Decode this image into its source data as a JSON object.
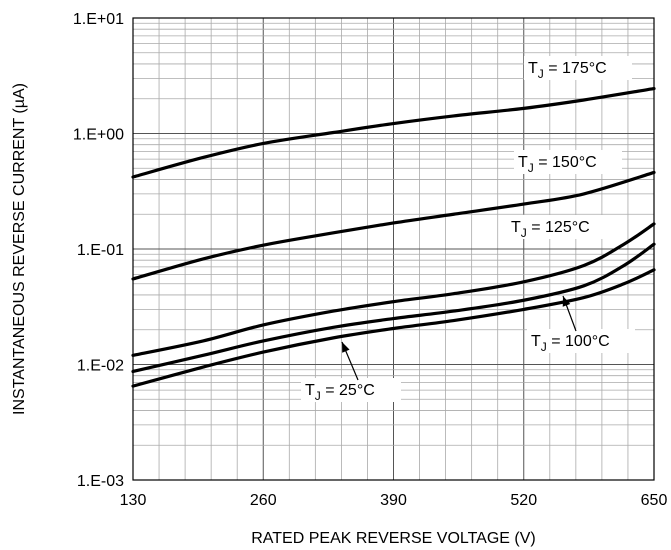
{
  "chart_data": {
    "type": "line",
    "title": "",
    "xlabel": "RATED PEAK REVERSE VOLTAGE (V)",
    "ylabel": "INSTANTANEOUS REVERSE CURRENT (µA)",
    "xlim": [
      130,
      650
    ],
    "ylim": [
      0.001,
      10
    ],
    "yscale": "log",
    "grid": true,
    "x_ticks": [
      "130",
      "260",
      "390",
      "520",
      "650"
    ],
    "y_ticks": [
      "1.E-03",
      "1.E-02",
      "1.E-01",
      "1.E+00",
      "1.E+01"
    ],
    "series": [
      {
        "name": "T_J = 175°C",
        "label_main": "T",
        "label_sub": "J",
        "label_rest": " = 175°C",
        "x": [
          130,
          200,
          260,
          330,
          390,
          450,
          520,
          580,
          650
        ],
        "y": [
          0.42,
          0.62,
          0.82,
          1.02,
          1.22,
          1.42,
          1.65,
          1.95,
          2.45
        ]
      },
      {
        "name": "T_J = 150°C",
        "label_main": "T",
        "label_sub": "J",
        "label_rest": " = 150°C",
        "x": [
          130,
          200,
          260,
          330,
          390,
          450,
          520,
          580,
          650
        ],
        "y": [
          0.055,
          0.082,
          0.108,
          0.138,
          0.168,
          0.2,
          0.245,
          0.3,
          0.46
        ]
      },
      {
        "name": "T_J = 125°C",
        "label_main": "T",
        "label_sub": "J",
        "label_rest": " = 125°C",
        "x": [
          130,
          200,
          260,
          330,
          390,
          450,
          520,
          580,
          620,
          650
        ],
        "y": [
          0.012,
          0.016,
          0.022,
          0.029,
          0.035,
          0.041,
          0.052,
          0.072,
          0.11,
          0.165
        ]
      },
      {
        "name": "T_J = 100°C",
        "label_main": "T",
        "label_sub": "J",
        "label_rest": " = 100°C",
        "x": [
          130,
          200,
          260,
          330,
          390,
          450,
          520,
          580,
          620,
          650
        ],
        "y": [
          0.0087,
          0.012,
          0.016,
          0.021,
          0.025,
          0.029,
          0.036,
          0.048,
          0.072,
          0.11
        ]
      },
      {
        "name": "T_J = 25°C",
        "label_main": "T",
        "label_sub": "J",
        "label_rest": " = 25°C",
        "x": [
          130,
          200,
          260,
          330,
          390,
          450,
          520,
          580,
          620,
          650
        ],
        "y": [
          0.0065,
          0.0095,
          0.0128,
          0.017,
          0.0205,
          0.024,
          0.03,
          0.038,
          0.05,
          0.066
        ]
      }
    ]
  }
}
